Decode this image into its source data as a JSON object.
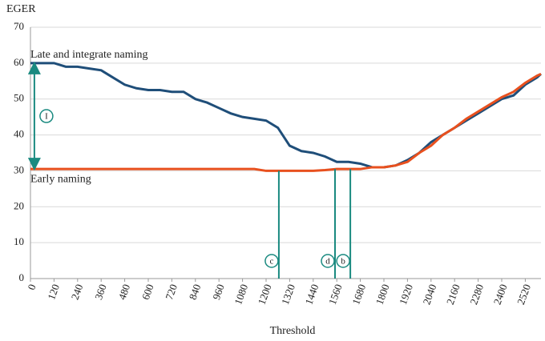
{
  "chart_data": {
    "type": "line",
    "y_label": "EGER",
    "x_label": "Threshold",
    "x": [
      0,
      60,
      120,
      180,
      240,
      300,
      360,
      420,
      480,
      540,
      600,
      660,
      720,
      780,
      840,
      900,
      960,
      1020,
      1080,
      1140,
      1200,
      1260,
      1320,
      1380,
      1440,
      1500,
      1560,
      1620,
      1680,
      1740,
      1800,
      1860,
      1920,
      1980,
      2040,
      2100,
      2160,
      2220,
      2280,
      2340,
      2400,
      2460,
      2520,
      2580,
      2600
    ],
    "series": [
      {
        "name": "Late and integrate naming",
        "color": "#1f4e79",
        "values": [
          60,
          60,
          60,
          59,
          59,
          58.5,
          58,
          56,
          54,
          53,
          52.5,
          52.5,
          52,
          52,
          50,
          49,
          47.5,
          46,
          45,
          44.5,
          44,
          42,
          37,
          35.5,
          35,
          34,
          32.5,
          32.5,
          32,
          31,
          31,
          31.5,
          33,
          35,
          38,
          40,
          42,
          44,
          46,
          48,
          50,
          51,
          54,
          56,
          57
        ]
      },
      {
        "name": "Early naming",
        "color": "#e8501e",
        "values": [
          30.5,
          30.5,
          30.5,
          30.5,
          30.5,
          30.5,
          30.5,
          30.5,
          30.5,
          30.5,
          30.5,
          30.5,
          30.5,
          30.5,
          30.5,
          30.5,
          30.5,
          30.5,
          30.5,
          30.5,
          30,
          30,
          30,
          30,
          30,
          30.2,
          30.5,
          30.5,
          30.5,
          31,
          31,
          31.5,
          32.5,
          35,
          37,
          40,
          42,
          44.5,
          46.5,
          48.5,
          50.5,
          52,
          54.5,
          56.5,
          57
        ]
      }
    ],
    "xlim": [
      0,
      2600
    ],
    "ylim": [
      0,
      70
    ],
    "xticks": [
      0,
      120,
      240,
      360,
      480,
      600,
      720,
      840,
      960,
      1080,
      1200,
      1320,
      1440,
      1560,
      1680,
      1800,
      1920,
      2040,
      2160,
      2280,
      2400,
      2520
    ],
    "yticks": [
      0,
      10,
      20,
      30,
      40,
      50,
      60,
      70
    ],
    "grid": true,
    "arrow": {
      "label": "I",
      "x": 20,
      "from": 60,
      "to": 30.5,
      "color": "#1a8a80"
    },
    "markers": [
      {
        "label": "c",
        "x": 1265,
        "y": 30
      },
      {
        "label": "d",
        "x": 1551,
        "y": 30.5
      },
      {
        "label": "b",
        "x": 1629,
        "y": 30.5
      }
    ],
    "marker_color": "#1a8a80"
  }
}
